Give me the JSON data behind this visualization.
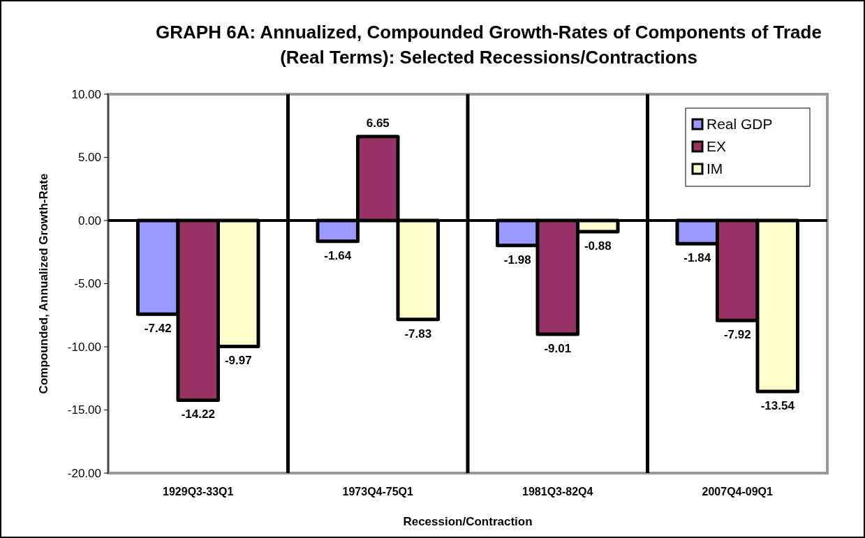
{
  "chart_data": {
    "type": "bar",
    "title": "GRAPH 6A: Annualized, Compounded Growth-Rates of Components of Trade (Real Terms): Selected Recessions/Contractions",
    "xlabel": "Recession/Contraction",
    "ylabel": "Compounded, Annualized Growth-Rate",
    "categories": [
      "1929Q3-33Q1",
      "1973Q4-75Q1",
      "1981Q3-82Q4",
      "2007Q4-09Q1"
    ],
    "series": [
      {
        "name": "Real GDP",
        "color": "#9999ff",
        "values": [
          -7.42,
          -1.64,
          -1.98,
          -1.84
        ]
      },
      {
        "name": "EX",
        "color": "#993366",
        "values": [
          -14.22,
          6.65,
          -9.01,
          -7.92
        ]
      },
      {
        "name": "IM",
        "color": "#ffffcc",
        "values": [
          -9.97,
          -7.83,
          -0.88,
          -13.54
        ]
      }
    ],
    "ylim": [
      -20,
      10
    ],
    "yticks": [
      {
        "value": -20,
        "label": "-20.00"
      },
      {
        "value": -15,
        "label": "-15.00"
      },
      {
        "value": -10,
        "label": "-10.00"
      },
      {
        "value": -5,
        "label": "-5.00"
      },
      {
        "value": 0,
        "label": "0.00"
      },
      {
        "value": 5,
        "label": "5.00"
      },
      {
        "value": 10,
        "label": "10.00"
      }
    ],
    "grid": "x",
    "legend": "top right",
    "data_labels": true
  }
}
